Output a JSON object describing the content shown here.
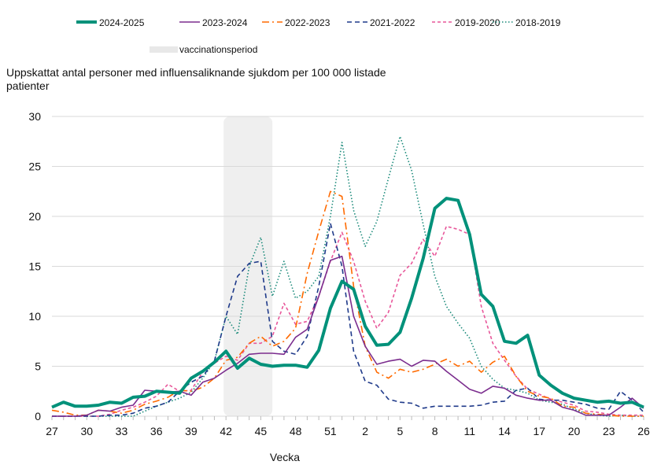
{
  "chart_data": {
    "type": "line",
    "title": "Uppskattat antal personer med influensaliknande sjukdom per 100 000 listade patienter",
    "xlabel": "Vecka",
    "ylabel": "",
    "ylim": [
      0,
      30
    ],
    "yticks": [
      "0",
      "5",
      "10",
      "15",
      "20",
      "25",
      "30"
    ],
    "grid": "horizontal",
    "legend_position": "top",
    "x": [
      27,
      28,
      29,
      30,
      31,
      32,
      33,
      34,
      35,
      36,
      37,
      38,
      39,
      40,
      41,
      42,
      43,
      44,
      45,
      46,
      47,
      48,
      49,
      50,
      51,
      52,
      1,
      2,
      3,
      4,
      5,
      6,
      7,
      8,
      9,
      10,
      11,
      12,
      13,
      14,
      15,
      16,
      17,
      18,
      19,
      20,
      21,
      22,
      23,
      24,
      25,
      26
    ],
    "xticks": [
      "27",
      "30",
      "33",
      "36",
      "39",
      "42",
      "45",
      "48",
      "51",
      "2",
      "5",
      "8",
      "11",
      "14",
      "17",
      "20",
      "23",
      "26"
    ],
    "shaded_region": {
      "label": "vaccinationsperiod",
      "from_week": 42,
      "to_week": 46,
      "color": "#efefef"
    },
    "series": [
      {
        "name": "2024-2025",
        "color": "#00917a",
        "style": "solid-thick",
        "values": [
          0.9,
          1.4,
          1.0,
          1.0,
          1.1,
          1.4,
          1.3,
          1.9,
          2.0,
          2.5,
          2.4,
          2.3,
          3.8,
          4.5,
          5.4,
          6.5,
          4.8,
          5.8,
          5.2,
          5.0,
          5.1,
          5.1,
          4.9,
          6.6,
          10.8,
          13.5,
          12.7,
          9.0,
          7.1,
          7.2,
          8.4,
          11.8,
          15.8,
          20.8,
          21.8,
          21.6,
          18.2,
          12.2,
          11.0,
          7.5,
          7.3,
          8.1,
          4.1,
          3.1,
          2.3,
          1.8,
          1.6,
          1.4,
          1.5,
          1.3,
          1.4,
          0.9
        ]
      },
      {
        "name": "2023-2024",
        "color": "#7b2d8e",
        "style": "solid",
        "values": [
          0,
          0,
          0,
          0.1,
          0.6,
          0.5,
          0.9,
          1.1,
          2.6,
          2.5,
          2.4,
          2.5,
          2.1,
          3.4,
          3.8,
          4.6,
          5.3,
          6.2,
          6.3,
          6.3,
          6.2,
          7.9,
          8.7,
          12.0,
          15.6,
          16.0,
          10.0,
          7.0,
          5.2,
          5.5,
          5.7,
          5.0,
          5.6,
          5.5,
          4.5,
          3.6,
          2.7,
          2.3,
          3.0,
          2.8,
          2.1,
          1.8,
          1.6,
          1.6,
          0.9,
          0.6,
          0.1,
          0.1,
          0.1,
          0.9,
          1.8,
          0.8
        ]
      },
      {
        "name": "2022-2023",
        "color": "#ff6a00",
        "style": "dashdot",
        "values": [
          0.6,
          0.4,
          0.1,
          0.1,
          0.6,
          0.5,
          0.3,
          0.6,
          1.2,
          1.5,
          1.9,
          2.6,
          2.5,
          2.9,
          3.8,
          5.6,
          5.9,
          7.3,
          8.0,
          7.0,
          7.5,
          8.8,
          14.3,
          18.5,
          22.5,
          22.0,
          13.0,
          7.0,
          4.4,
          3.8,
          4.7,
          4.4,
          4.7,
          5.2,
          5.7,
          5.0,
          5.5,
          4.4,
          5.4,
          6.0,
          4.0,
          2.5,
          2.0,
          1.8,
          1.0,
          0.9,
          0.3,
          0.2,
          0.1,
          0.0,
          0.0,
          0.0
        ]
      },
      {
        "name": "2021-2022",
        "color": "#1f3a8a",
        "style": "dashed",
        "values": [
          0,
          0,
          0,
          0,
          0,
          0.1,
          0.1,
          0.3,
          0.8,
          1.0,
          1.4,
          2.5,
          3.4,
          4.0,
          5.5,
          10.0,
          14.0,
          15.3,
          15.5,
          7.5,
          6.5,
          6.2,
          8.0,
          13.0,
          19.3,
          15.0,
          6.5,
          3.5,
          3.1,
          1.7,
          1.4,
          1.3,
          0.8,
          1.0,
          1.0,
          1.0,
          1.0,
          1.1,
          1.4,
          1.5,
          2.6,
          2.8,
          1.7,
          1.6,
          1.6,
          1.4,
          1.2,
          0.8,
          0.7,
          2.5,
          1.6,
          0.4
        ]
      },
      {
        "name": "2019-2020",
        "color": "#e8579a",
        "style": "short-dashed",
        "values": [
          0,
          0,
          0,
          0,
          0,
          0.2,
          0.6,
          0.9,
          1.4,
          2.0,
          3.2,
          2.5,
          2.6,
          4.4,
          5.3,
          6.0,
          5.6,
          7.3,
          7.3,
          8.0,
          11.3,
          9.2,
          9.5,
          12.0,
          15.5,
          18.4,
          15.5,
          11.5,
          8.8,
          10.4,
          14.1,
          15.3,
          17.7,
          16.0,
          19.0,
          18.7,
          18.2,
          11.0,
          7.3,
          5.6,
          4.0,
          2.7,
          2.2,
          1.7,
          1.4,
          1.1,
          0.5,
          0.4,
          0.2,
          0.1,
          0.1,
          0.1
        ]
      },
      {
        "name": "2018-2019",
        "color": "#1a8a7a",
        "style": "dotted",
        "values": [
          0,
          0,
          0,
          0,
          0,
          0,
          0,
          0,
          0.5,
          1.0,
          1.4,
          1.8,
          2.4,
          3.8,
          5.5,
          10.0,
          8.2,
          15.0,
          17.9,
          12.0,
          15.5,
          11.8,
          12.5,
          14.0,
          20.0,
          27.4,
          20.6,
          17.0,
          19.5,
          23.8,
          28.0,
          24.6,
          19.2,
          14.0,
          11.0,
          9.3,
          7.8,
          5.0,
          3.7,
          2.8,
          2.6,
          2.3,
          1.6,
          1.4,
          1.2,
          0.7,
          0.3,
          0.1,
          0.0,
          0.1,
          0.0,
          0.0
        ]
      }
    ]
  }
}
